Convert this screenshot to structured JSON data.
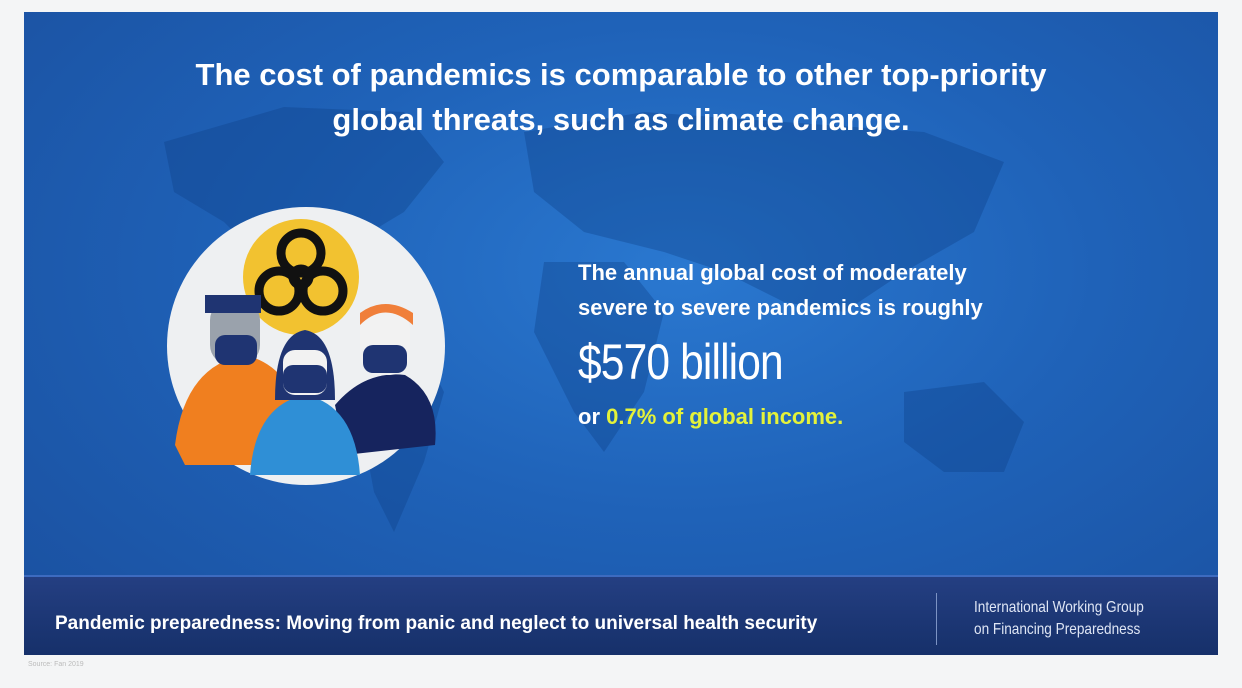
{
  "title": {
    "line1": "The cost of pandemics is comparable to other top-priority",
    "line2": "global threats, such as climate change."
  },
  "stat": {
    "line1": "The annual global cost of moderately",
    "line2": "severe to severe pandemics is roughly",
    "amount": "$570 billion",
    "prefix": "or ",
    "highlight": "0.7% of global income."
  },
  "footer": {
    "left": "Pandemic preparedness: Moving from panic and neglect to universal health security",
    "right_line1": "International Working Group",
    "right_line2": "on Financing Preparedness"
  },
  "source": "Source: Fan 2019",
  "colors": {
    "background": "#1f62b8",
    "footer": "#1b3570",
    "highlight": "#e4f23a",
    "biohazard_bg": "#f2c230"
  }
}
